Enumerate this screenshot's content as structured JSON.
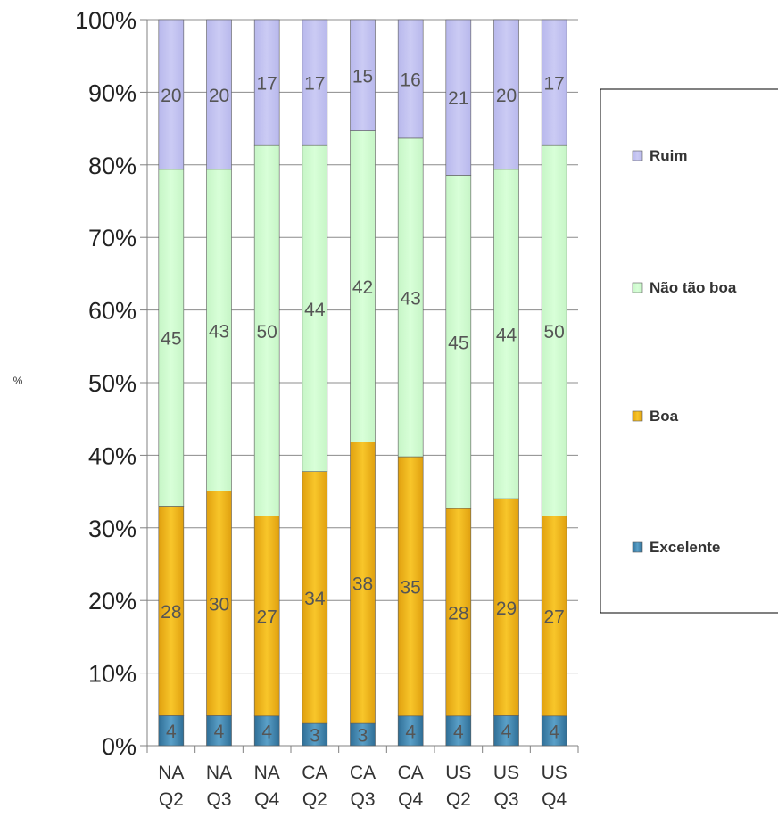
{
  "chart_data": {
    "type": "bar",
    "stacked": true,
    "percent_stacked": true,
    "title": "",
    "xlabel": "",
    "ylabel": "%",
    "ylim": [
      0,
      100
    ],
    "yticks": [
      "0%",
      "10%",
      "20%",
      "30%",
      "40%",
      "50%",
      "60%",
      "70%",
      "80%",
      "90%",
      "100%"
    ],
    "categories": [
      [
        "NA",
        "Q2"
      ],
      [
        "NA",
        "Q3"
      ],
      [
        "NA",
        "Q4"
      ],
      [
        "CA",
        "Q2"
      ],
      [
        "CA",
        "Q3"
      ],
      [
        "CA",
        "Q4"
      ],
      [
        "US",
        "Q2"
      ],
      [
        "US",
        "Q3"
      ],
      [
        "US",
        "Q4"
      ]
    ],
    "series": [
      {
        "name": "Excelente",
        "color": "#4a8fb5",
        "values": [
          4,
          4,
          4,
          3,
          3,
          4,
          4,
          4,
          4
        ]
      },
      {
        "name": "Boa",
        "color": "#f2b61a",
        "values": [
          28,
          30,
          27,
          34,
          38,
          35,
          28,
          29,
          27
        ]
      },
      {
        "name": "Não tão boa",
        "color": "#ccffcc",
        "values": [
          45,
          43,
          50,
          44,
          42,
          43,
          45,
          44,
          50
        ]
      },
      {
        "name": "Ruim",
        "color": "#c3c3f0",
        "values": [
          20,
          20,
          17,
          17,
          15,
          16,
          21,
          20,
          17
        ]
      }
    ],
    "legend_position": "right",
    "grid": true
  }
}
